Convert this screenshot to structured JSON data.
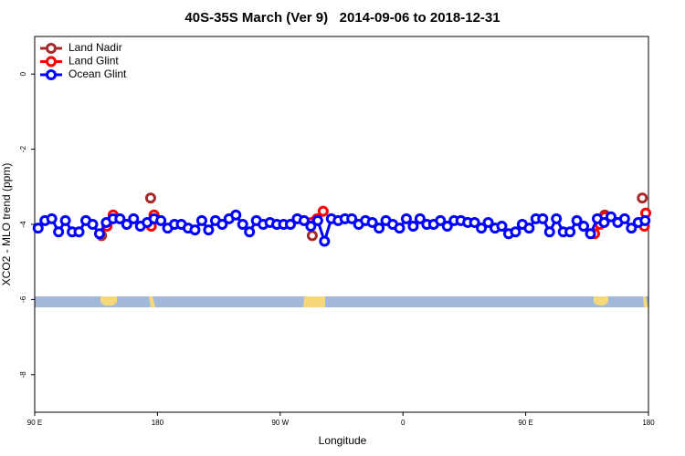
{
  "chart_data": {
    "type": "line",
    "title": "40S-35S March (Ver 9)   2014-09-06 to 2018-12-31",
    "x_label": "Longitude",
    "y_label": "XCO2 - MLO trend (ppm)",
    "xlim": [
      90,
      540
    ],
    "ylim": [
      -9,
      1
    ],
    "xticks": [
      {
        "value": 90,
        "label": "90 E"
      },
      180,
      {
        "value": 270,
        "label": "90 W"
      },
      {
        "value": 360,
        "label": "0"
      },
      {
        "value": 450,
        "label": "90 E"
      },
      {
        "value": 540,
        "label": "180"
      }
    ],
    "yticks": [
      0,
      -2,
      -4,
      -6,
      -8
    ],
    "legend": "top-left",
    "series": [
      {
        "name": "Land Nadir",
        "color": "#a52a2a",
        "x": [
          139,
          null,
          175,
          null,
          293.5,
          null,
          508,
          null,
          535.5
        ],
        "values": [
          -4.3,
          null,
          -3.3,
          null,
          -4.3,
          null,
          -3.75,
          null,
          -3.3
        ]
      },
      {
        "name": "Land Glint",
        "color": "#ff0000",
        "x": [
          143,
          147.5,
          null,
          175.5,
          177.5,
          null,
          293,
          297,
          301.5,
          null,
          500.5,
          504.5,
          508,
          null,
          537,
          538
        ],
        "values": [
          -4.05,
          -3.75,
          null,
          -4.05,
          -3.75,
          null,
          -3.95,
          -3.85,
          -3.65,
          null,
          -4.25,
          -4.0,
          -3.8,
          null,
          -4.05,
          -3.7
        ]
      },
      {
        "name": "Ocean Glint",
        "color": "#0000ff",
        "x": [
          92.5,
          97.5,
          102.5,
          107.5,
          112.5,
          117.5,
          122.5,
          127.5,
          132.5,
          137.5,
          142.5,
          147.5,
          152.5,
          157.5,
          162.5,
          167.5,
          172.5,
          177.5,
          182.5,
          187.5,
          192.5,
          197.5,
          202.5,
          207.5,
          212.5,
          217.5,
          222.5,
          227.5,
          232.5,
          237.5,
          242.5,
          247.5,
          252.5,
          257.5,
          262.5,
          267.5,
          272.5,
          277.5,
          282.5,
          287.5,
          292.5,
          297.5,
          302.5,
          307.5,
          312.5,
          317.5,
          322.5,
          327.5,
          332.5,
          337.5,
          342.5,
          347.5,
          352.5,
          357.5,
          362.5,
          367.5,
          372.5,
          377.5,
          382.5,
          387.5,
          392.5,
          397.5,
          402.5,
          407.5,
          412.5,
          417.5,
          422.5,
          427.5,
          432.5,
          437.5,
          442.5,
          447.5,
          452.5,
          457.5,
          462.5,
          467.5,
          472.5,
          477.5,
          482.5,
          487.5,
          492.5,
          497.5,
          502.5,
          507.5,
          512.5,
          517.5,
          522.5,
          527.5,
          532.5,
          537.5
        ],
        "values": [
          -4.1,
          -3.9,
          -3.85,
          -4.2,
          -3.9,
          -4.2,
          -4.2,
          -3.9,
          -4.0,
          -4.25,
          -3.95,
          -3.85,
          -3.85,
          -4.0,
          -3.85,
          -4.05,
          -3.95,
          -3.85,
          -3.9,
          -4.1,
          -4.0,
          -4.0,
          -4.1,
          -4.15,
          -3.9,
          -4.15,
          -3.9,
          -4.0,
          -3.85,
          -3.75,
          -4.0,
          -4.2,
          -3.9,
          -4.0,
          -3.95,
          -4.0,
          -4.0,
          -4.0,
          -3.85,
          -3.9,
          -4.05,
          -3.9,
          -4.45,
          -3.85,
          -3.9,
          -3.85,
          -3.85,
          -4.0,
          -3.9,
          -3.95,
          -4.1,
          -3.9,
          -4.0,
          -4.1,
          -3.85,
          -4.05,
          -3.85,
          -4.0,
          -4.0,
          -3.9,
          -4.05,
          -3.9,
          -3.9,
          -3.95,
          -3.95,
          -4.1,
          -3.95,
          -4.1,
          -4.05,
          -4.25,
          -4.2,
          -4.0,
          -4.1,
          -3.85,
          -3.85,
          -4.2,
          -3.85,
          -4.2,
          -4.2,
          -3.9,
          -4.05,
          -4.25,
          -3.85,
          -3.95,
          -3.8,
          -3.95,
          -3.85,
          -4.1,
          -3.95,
          -3.9
        ]
      }
    ]
  }
}
